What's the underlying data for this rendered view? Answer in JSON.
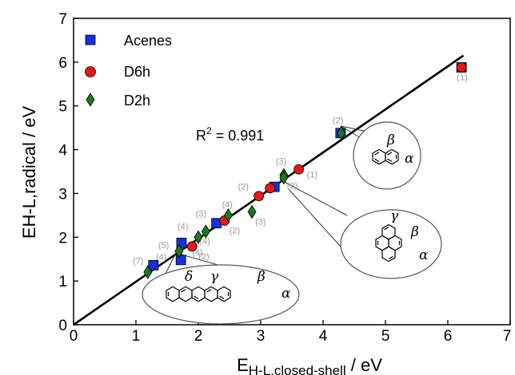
{
  "chart_data": {
    "type": "scatter",
    "xlabel": "E",
    "xlabel_sub": "H-L,closed-shell",
    "xlabel_unit": " / eV",
    "ylabel": "EH-L,radical / eV",
    "xlim": [
      0,
      7
    ],
    "ylim": [
      0,
      7
    ],
    "xticks": [
      "0",
      "1",
      "2",
      "3",
      "4",
      "5",
      "6",
      "7"
    ],
    "yticks": [
      "0",
      "1",
      "2",
      "3",
      "4",
      "5",
      "6",
      "7"
    ],
    "legend_position": "top-left",
    "fit_line": {
      "x": [
        0,
        6.25
      ],
      "y": [
        0,
        6.15
      ]
    },
    "r2_label": "R",
    "r2_sup": "2",
    "r2_value": " = 0.991",
    "series": [
      {
        "name": "Acenes",
        "marker": "square",
        "color": "#1430e0",
        "points": [
          {
            "x": 1.28,
            "y": 1.36,
            "label": "(7)"
          },
          {
            "x": 1.72,
            "y": 1.48,
            "label": ""
          },
          {
            "x": 1.73,
            "y": 1.87,
            "label": ""
          },
          {
            "x": 2.29,
            "y": 2.32,
            "label": "(3)"
          },
          {
            "x": 3.22,
            "y": 3.15,
            "label": ""
          },
          {
            "x": 4.28,
            "y": 4.38,
            "label": "(2)"
          },
          {
            "x": 6.22,
            "y": 5.88,
            "label": "(1)"
          }
        ]
      },
      {
        "name": "D6h",
        "marker": "circle",
        "color": "#e81818",
        "points": [
          {
            "x": 1.9,
            "y": 1.79,
            "label": "(2)"
          },
          {
            "x": 2.42,
            "y": 2.38,
            "label": "(2)"
          },
          {
            "x": 2.97,
            "y": 2.94,
            "label": "(2)"
          },
          {
            "x": 3.15,
            "y": 3.12,
            "label": ""
          },
          {
            "x": 3.61,
            "y": 3.55,
            "label": "(1)"
          },
          {
            "x": 6.22,
            "y": 5.88,
            "label": ""
          }
        ]
      },
      {
        "name": "D2h",
        "marker": "diamond",
        "color": "#1a7a1a",
        "points": [
          {
            "x": 1.19,
            "y": 1.2,
            "label": ""
          },
          {
            "x": 1.69,
            "y": 1.68,
            "label": "(5)"
          },
          {
            "x": 2.0,
            "y": 2.0,
            "label": "(4)"
          },
          {
            "x": 2.12,
            "y": 2.13,
            "label": "(4)"
          },
          {
            "x": 2.48,
            "y": 2.5,
            "label": "(4)"
          },
          {
            "x": 2.86,
            "y": 2.58,
            "label": "(3)"
          },
          {
            "x": 3.37,
            "y": 3.42,
            "label": "(3)"
          },
          {
            "x": 3.37,
            "y": 3.36,
            "label": "(3)"
          },
          {
            "x": 4.29,
            "y": 4.38,
            "label": ""
          }
        ]
      }
    ],
    "extra_labels": [
      {
        "x": 1.5,
        "y": 1.56,
        "label": "(4)"
      },
      {
        "x": 2.08,
        "y": 1.66,
        "label": "(4)"
      }
    ],
    "insets": [
      {
        "name": "naphthalene",
        "labels": [
          "β",
          "α"
        ]
      },
      {
        "name": "pyrene",
        "labels": [
          "γ",
          "β",
          "α"
        ]
      },
      {
        "name": "pentacene",
        "labels": [
          "δ",
          "γ",
          "β",
          "α"
        ]
      }
    ]
  }
}
